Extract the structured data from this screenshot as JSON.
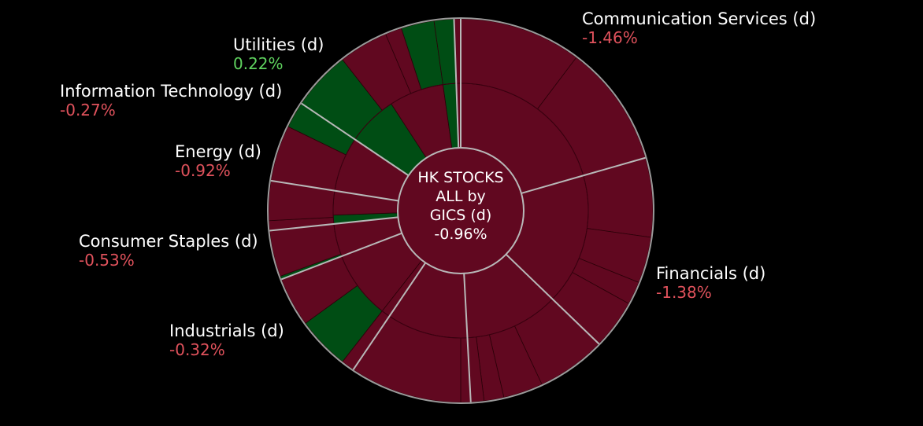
{
  "colors": {
    "background": "#000000",
    "negative": "#610820",
    "positive": "#004d14",
    "separator": "#b8b8b8",
    "negative_text": "#e0525c",
    "positive_text": "#5fd35f",
    "label_text": "#ffffff"
  },
  "chart_data": {
    "type": "sunburst",
    "title": "HK STOCKS ALL by GICS (d)",
    "center": {
      "line1": "HK STOCKS",
      "line2": "ALL by",
      "line3": "GICS (d)",
      "change": "-0.96%",
      "value": -0.96
    },
    "sectors": [
      {
        "key": "comm",
        "name": "Communication Services (d)",
        "change": "-1.46%",
        "value": -1.46,
        "start_deg": 0,
        "end_deg": 74,
        "industries": [
          {
            "start_deg": 0,
            "end_deg": 74,
            "value": -1.46
          }
        ],
        "subs": [
          {
            "start_deg": 0,
            "end_deg": 37,
            "value": -1.5
          },
          {
            "start_deg": 37,
            "end_deg": 74,
            "value": -1.4
          }
        ]
      },
      {
        "key": "fin",
        "name": "Financials (d)",
        "change": "-1.38%",
        "value": -1.38,
        "start_deg": 74,
        "end_deg": 134,
        "industries": [
          {
            "start_deg": 74,
            "end_deg": 134,
            "value": -1.38
          }
        ],
        "subs": [
          {
            "start_deg": 74,
            "end_deg": 98,
            "value": -1.4
          },
          {
            "start_deg": 98,
            "end_deg": 112,
            "value": -1.3
          },
          {
            "start_deg": 112,
            "end_deg": 119,
            "value": -1.2
          },
          {
            "start_deg": 119,
            "end_deg": 134,
            "value": -1.5
          }
        ]
      },
      {
        "key": "other",
        "name": "",
        "change": "",
        "value": -1.1,
        "start_deg": 134,
        "end_deg": 177,
        "industries": [
          {
            "start_deg": 134,
            "end_deg": 177,
            "value": -1.1
          }
        ],
        "subs": [
          {
            "start_deg": 134,
            "end_deg": 155,
            "value": -1.0
          },
          {
            "start_deg": 155,
            "end_deg": 167,
            "value": -1.1
          },
          {
            "start_deg": 167,
            "end_deg": 173,
            "value": -0.9
          },
          {
            "start_deg": 173,
            "end_deg": 177,
            "value": -1.2
          }
        ]
      },
      {
        "key": "other2",
        "name": "",
        "change": "",
        "value": -0.8,
        "start_deg": 177,
        "end_deg": 214,
        "industries": [
          {
            "start_deg": 177,
            "end_deg": 214,
            "value": -0.8
          }
        ],
        "subs": [
          {
            "start_deg": 177,
            "end_deg": 180,
            "value": -0.7
          },
          {
            "start_deg": 180,
            "end_deg": 214,
            "value": -0.8
          }
        ]
      },
      {
        "key": "ind",
        "name": "Industrials (d)",
        "change": "-0.32%",
        "value": -0.32,
        "start_deg": 214,
        "end_deg": 249,
        "industries": [
          {
            "start_deg": 214,
            "end_deg": 218,
            "value": -0.4
          },
          {
            "start_deg": 218,
            "end_deg": 249,
            "value": -0.3
          }
        ],
        "subs": [
          {
            "start_deg": 214,
            "end_deg": 218,
            "value": -0.4
          },
          {
            "start_deg": 218,
            "end_deg": 234,
            "value": 0.6
          },
          {
            "start_deg": 234,
            "end_deg": 249,
            "value": -0.5
          }
        ]
      },
      {
        "key": "staples",
        "name": "Consumer Staples (d)",
        "change": "-0.53%",
        "value": -0.53,
        "start_deg": 249,
        "end_deg": 264,
        "industries": [
          {
            "start_deg": 249,
            "end_deg": 264,
            "value": -0.53
          }
        ],
        "subs": [
          {
            "start_deg": 249,
            "end_deg": 250,
            "value": 0.2
          },
          {
            "start_deg": 250,
            "end_deg": 264,
            "value": -0.6
          }
        ]
      },
      {
        "key": "energy",
        "name": "Energy (d)",
        "change": "-0.92%",
        "value": -0.92,
        "start_deg": 264,
        "end_deg": 279,
        "industries": [
          {
            "start_deg": 264,
            "end_deg": 268,
            "value": 0.3
          },
          {
            "start_deg": 268,
            "end_deg": 279,
            "value": -1.1
          }
        ],
        "subs": [
          {
            "start_deg": 264,
            "end_deg": 267,
            "value": -1.0
          },
          {
            "start_deg": 267,
            "end_deg": 279,
            "value": -0.9
          }
        ]
      },
      {
        "key": "it",
        "name": "Information Technology (d)",
        "change": "-0.27%",
        "value": -0.27,
        "start_deg": 279,
        "end_deg": 304,
        "industries": [
          {
            "start_deg": 279,
            "end_deg": 304,
            "value": -0.27
          }
        ],
        "subs": [
          {
            "start_deg": 279,
            "end_deg": 296,
            "value": -0.5
          },
          {
            "start_deg": 296,
            "end_deg": 304,
            "value": 0.4
          }
        ]
      },
      {
        "key": "util",
        "name": "Utilities (d)",
        "change": "0.22%",
        "value": 0.22,
        "start_deg": 304,
        "end_deg": 358,
        "industries": [
          {
            "start_deg": 304,
            "end_deg": 327,
            "value": 0.4
          },
          {
            "start_deg": 327,
            "end_deg": 352,
            "value": -0.2
          },
          {
            "start_deg": 352,
            "end_deg": 358,
            "value": 0.5
          }
        ],
        "subs": [
          {
            "start_deg": 304,
            "end_deg": 322,
            "value": 0.6
          },
          {
            "start_deg": 322,
            "end_deg": 337,
            "value": -0.3
          },
          {
            "start_deg": 337,
            "end_deg": 342,
            "value": -0.4
          },
          {
            "start_deg": 342,
            "end_deg": 352,
            "value": 0.5
          },
          {
            "start_deg": 352,
            "end_deg": 358,
            "value": 0.7
          }
        ]
      },
      {
        "key": "tail",
        "name": "",
        "change": "",
        "value": -0.5,
        "start_deg": 358,
        "end_deg": 360,
        "industries": [
          {
            "start_deg": 358,
            "end_deg": 360,
            "value": -0.5
          }
        ],
        "subs": [
          {
            "start_deg": 358,
            "end_deg": 360,
            "value": -0.5
          }
        ]
      }
    ],
    "labels": {
      "comm": {
        "name": "Communication Services (d)",
        "change": "-1.46%"
      },
      "util": {
        "name": "Utilities (d)",
        "change": "0.22%"
      },
      "it": {
        "name": "Information Technology (d)",
        "change": "-0.27%"
      },
      "energy": {
        "name": "Energy (d)",
        "change": "-0.92%"
      },
      "staples": {
        "name": "Consumer Staples (d)",
        "change": "-0.53%"
      },
      "fin": {
        "name": "Financials (d)",
        "change": "-1.38%"
      },
      "ind": {
        "name": "Industrials (d)",
        "change": "-0.32%"
      }
    }
  }
}
